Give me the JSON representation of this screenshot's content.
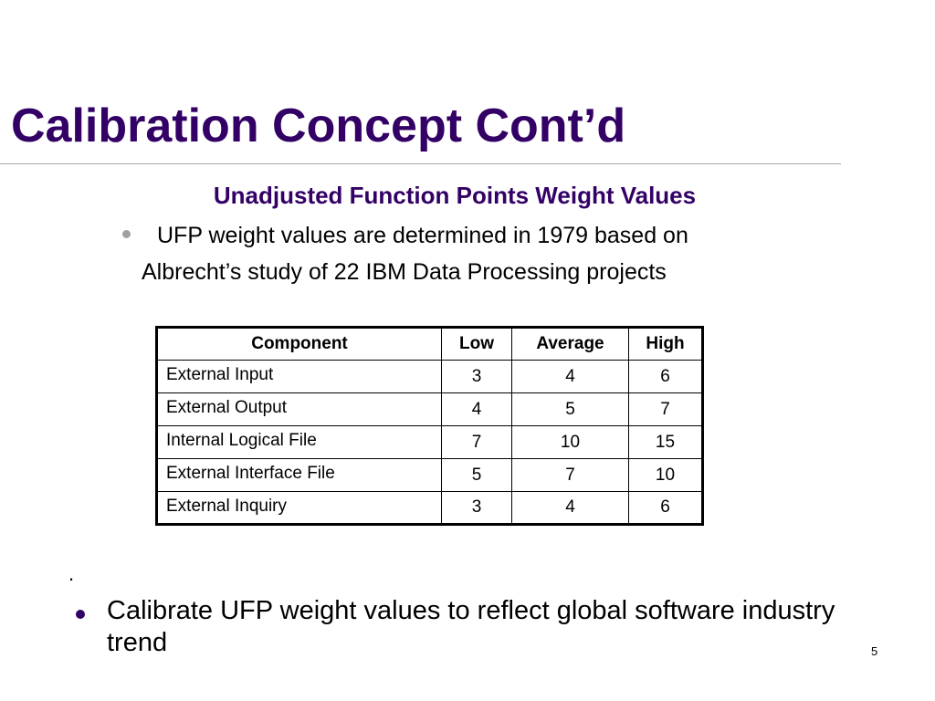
{
  "slide": {
    "title": "Calibration Concept Cont’d",
    "subtitle": "Unadjusted Function Points Weight Values",
    "intro_line1": "UFP weight values are determined in 1979 based on",
    "intro_line2": "Albrecht’s study of 22 IBM Data Processing projects",
    "table": {
      "headers": [
        "Component",
        "Low",
        "Average",
        "High"
      ],
      "rows": [
        [
          "External Input",
          "3",
          "4",
          "6"
        ],
        [
          "External Output",
          "4",
          "5",
          "7"
        ],
        [
          "Internal Logical File",
          "7",
          "10",
          "15"
        ],
        [
          "External Interface File",
          "5",
          "7",
          "10"
        ],
        [
          "External Inquiry",
          "3",
          "4",
          "6"
        ]
      ]
    },
    "stray_mark": ".",
    "bullet_point": "Calibrate UFP weight values to reflect global software industry trend",
    "page_number": "5"
  },
  "colors": {
    "title": "#330066",
    "bullet_primary": "#330066",
    "bullet_secondary": "#a0a0a0",
    "rule": "#a6a6a6"
  }
}
